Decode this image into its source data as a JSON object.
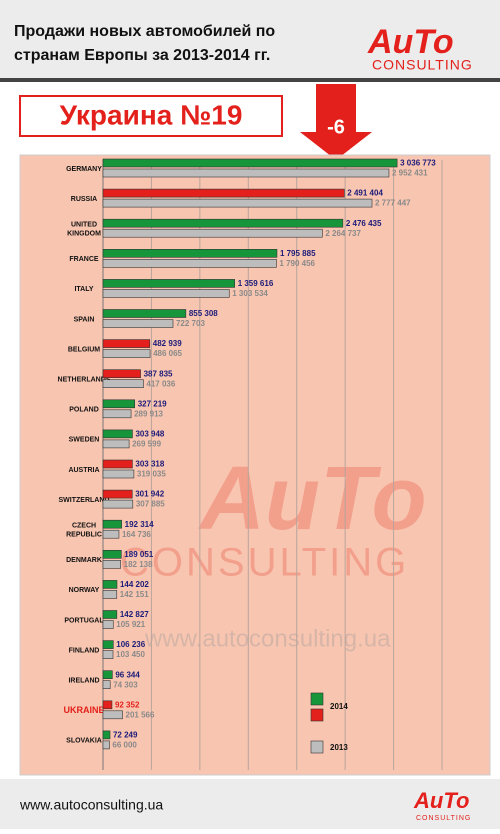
{
  "header": {
    "title_lines": [
      "Продажи новых автомобилей по",
      "странам Европы за 2013-2014 гг."
    ],
    "rank": "Украина №19",
    "change": "-6"
  },
  "logo": {
    "word": "AuTo",
    "sub": "CONSULTING"
  },
  "footer": "www.autoconsulting.ua",
  "chart_data": {
    "type": "hbar",
    "categories": [
      "GERMANY",
      "RUSSIA",
      "UNITED\nKINGDOM",
      "FRANCE",
      "ITALY",
      "SPAIN",
      "BELGIUM",
      "NETHERLANDS",
      "POLAND",
      "SWEDEN",
      "AUSTRIA",
      "SWITZERLAND",
      "CZECH\nREPUBLIC",
      "DENMARK",
      "NORWAY",
      "PORTUGAL",
      "FINLAND",
      "IRELAND",
      "UKRAINE",
      "SLOVAKIA"
    ],
    "category_label_colors": [
      "#111",
      "#111",
      "#111",
      "#111",
      "#111",
      "#111",
      "#111",
      "#111",
      "#111",
      "#111",
      "#111",
      "#111",
      "#111",
      "#111",
      "#111",
      "#111",
      "#111",
      "#111",
      "#e3201b",
      "#111"
    ],
    "series": [
      {
        "name": "2014",
        "colors": [
          "#17953a",
          "#e3201b",
          "#17953a",
          "#17953a",
          "#17953a",
          "#17953a",
          "#e3201b",
          "#e3201b",
          "#17953a",
          "#17953a",
          "#e3201b",
          "#e3201b",
          "#17953a",
          "#17953a",
          "#17953a",
          "#17953a",
          "#17953a",
          "#17953a",
          "#e3201b",
          "#17953a"
        ],
        "legend_colors": [
          "#17953a",
          "#e3201b"
        ],
        "value_label_colors": [
          "#1b1b7a",
          "#1b1b7a",
          "#1b1b7a",
          "#1b1b7a",
          "#1b1b7a",
          "#1b1b7a",
          "#1b1b7a",
          "#1b1b7a",
          "#1b1b7a",
          "#1b1b7a",
          "#1b1b7a",
          "#1b1b7a",
          "#1b1b7a",
          "#1b1b7a",
          "#1b1b7a",
          "#1b1b7a",
          "#1b1b7a",
          "#1b1b7a",
          "#e3201b",
          "#1b1b7a"
        ],
        "values": [
          3036773,
          2491404,
          2476435,
          1795885,
          1359616,
          855308,
          482939,
          387835,
          327219,
          303948,
          303318,
          301942,
          192314,
          189051,
          144202,
          142827,
          106236,
          96344,
          92352,
          72249
        ],
        "value_labels": [
          "3 036 773",
          "2 491 404",
          "2 476 435",
          "1 795 885",
          "1 359 616",
          "855 308",
          "482 939",
          "387 835",
          "327 219",
          "303 948",
          "303 318",
          "301 942",
          "192 314",
          "189 051",
          "144 202",
          "142 827",
          "106 236",
          "96 344",
          "92 352",
          "72 249"
        ]
      },
      {
        "name": "2013",
        "color": "#bdbdbd",
        "label_color": "#8a8a8a",
        "values": [
          2952431,
          2777447,
          2264737,
          1790456,
          1303534,
          722703,
          486065,
          417036,
          289913,
          269599,
          319035,
          307885,
          164736,
          182138,
          142151,
          105921,
          103450,
          74303,
          201566,
          66000
        ],
        "value_labels": [
          "2 952 431",
          "2 777 447",
          "2 264 737",
          "1 790 456",
          "1 303 534",
          "722 703",
          "486 065",
          "417 036",
          "289 913",
          "269 599",
          "319 035",
          "307 885",
          "164 736",
          "182 138",
          "142 151",
          "105 921",
          "103 450",
          "74 303",
          "201 566",
          "66 000"
        ]
      }
    ],
    "xlim": [
      0,
      3500000
    ],
    "xticks": [
      0,
      500000,
      1000000,
      1500000,
      2000000,
      2500000,
      3000000,
      3500000
    ],
    "grid": true
  }
}
